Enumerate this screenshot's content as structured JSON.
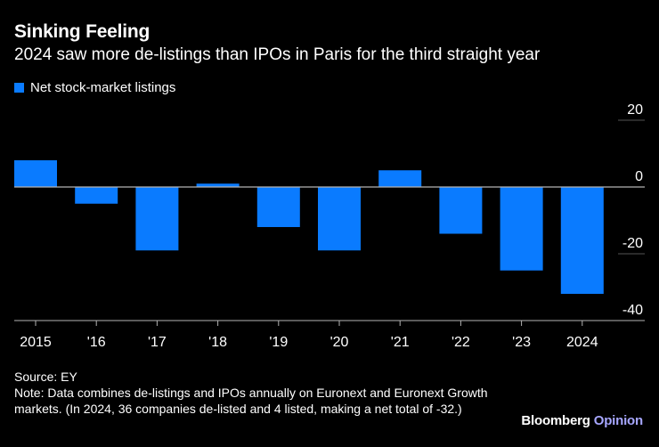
{
  "chart_data": {
    "type": "bar",
    "title": "Sinking Feeling",
    "subtitle": "2024 saw more de-listings than IPOs in Paris for the third straight year",
    "legend": "Net stock-market listings",
    "categories": [
      "2015",
      "'16",
      "'17",
      "'18",
      "'19",
      "'20",
      "'21",
      "'22",
      "'23",
      "2024"
    ],
    "series": [
      {
        "name": "Net stock-market listings",
        "values": [
          8,
          -5,
          -19,
          1,
          -12,
          -19,
          5,
          -14,
          -25,
          -32
        ]
      }
    ],
    "y_ticks": [
      20,
      0,
      -20,
      -40
    ],
    "y_tick_labels": [
      "20",
      "0",
      "-20",
      "-40"
    ],
    "ylim": [
      -40,
      20
    ],
    "xlabel": "",
    "ylabel": ""
  },
  "colors": {
    "bar": "#0a7bff",
    "axis": "#b3b3b3",
    "grid": "#555555",
    "background": "#000000"
  },
  "footer": {
    "source": "Source: EY",
    "note": "Note: Data combines de-listings and IPOs annually on Euronext and Euronext Growth markets. (In 2024, 36 companies de-listed and 4 listed, making a net total of -32.)"
  },
  "brand": {
    "name": "Bloomberg",
    "section": "Opinion"
  }
}
